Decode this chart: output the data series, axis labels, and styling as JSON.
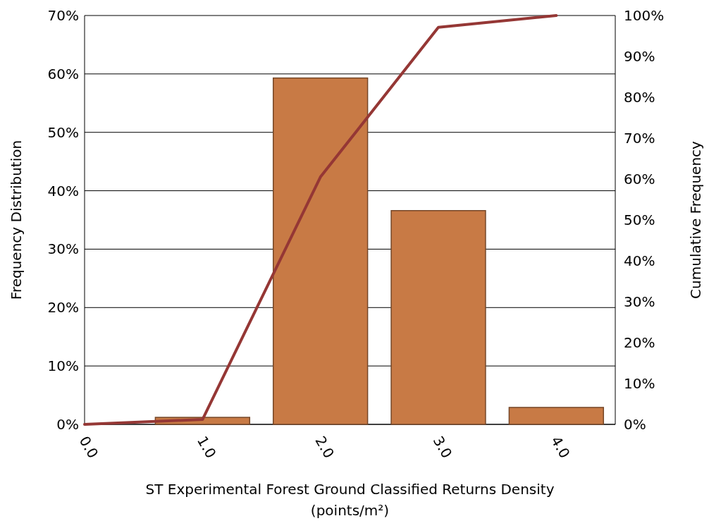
{
  "chart_data": {
    "type": "bar",
    "xlabel": "ST Experimental Forest  Ground Classified Returns Density\n(points/m²)",
    "ylabel": "Frequency Distribution",
    "y2label": "Cumulative Frequency",
    "categories": [
      "0.0",
      "1.0",
      "2.0",
      "3.0",
      "4.0"
    ],
    "series": [
      {
        "color": "#c87a45",
        "values": [
          0,
          1.2,
          59.3,
          36.6,
          2.9
        ]
      },
      {
        "type": "line",
        "axis": "y2",
        "color": "#953735",
        "values": [
          0,
          1.2,
          60.5,
          97.1,
          100
        ]
      }
    ],
    "ylim": [
      0,
      70
    ],
    "yticks": [
      {
        "value": 0,
        "label": "0%"
      },
      {
        "value": 10,
        "label": "10%"
      },
      {
        "value": 20,
        "label": "20%"
      },
      {
        "value": 30,
        "label": "30%"
      },
      {
        "value": 40,
        "label": "40%"
      },
      {
        "value": 50,
        "label": "50%"
      },
      {
        "value": 60,
        "label": "60%"
      },
      {
        "value": 70,
        "label": "70%"
      }
    ],
    "y2lim": [
      0,
      100
    ],
    "y2ticks": [
      {
        "value": 0,
        "label": "0%"
      },
      {
        "value": 10,
        "label": "10%"
      },
      {
        "value": 20,
        "label": "20%"
      },
      {
        "value": 30,
        "label": "30%"
      },
      {
        "value": 40,
        "label": "40%"
      },
      {
        "value": 50,
        "label": "50%"
      },
      {
        "value": 60,
        "label": "60%"
      },
      {
        "value": 70,
        "label": "70%"
      },
      {
        "value": 80,
        "label": "80%"
      },
      {
        "value": 90,
        "label": "90%"
      },
      {
        "value": 100,
        "label": "100%"
      }
    ],
    "grid": "y",
    "marker": "none"
  }
}
